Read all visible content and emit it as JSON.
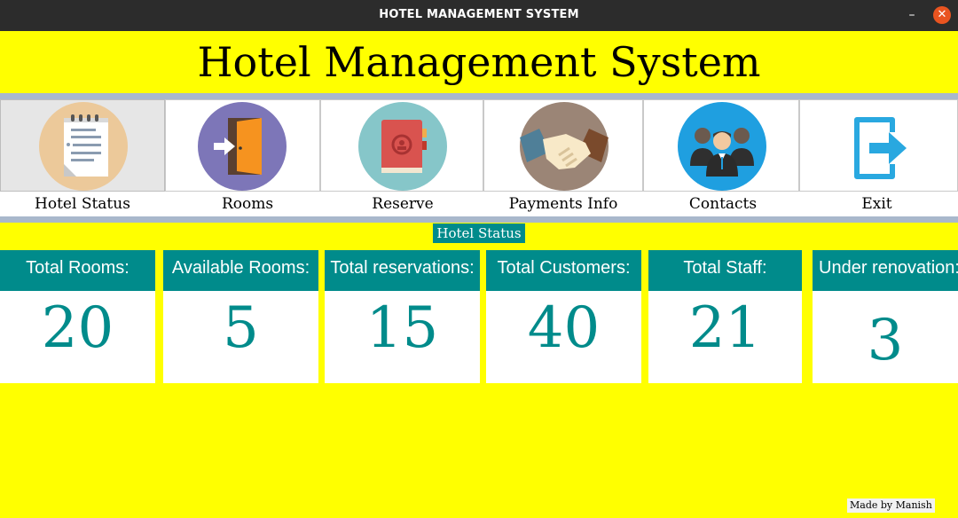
{
  "window": {
    "title": "HOTEL MANAGEMENT SYSTEM",
    "minimize_glyph": "–",
    "close_glyph": "✕"
  },
  "heading": "Hotel Management System",
  "nav": [
    {
      "label": "Hotel Status",
      "icon": "notepad-icon",
      "active": true
    },
    {
      "label": "Rooms",
      "icon": "door-icon",
      "active": false
    },
    {
      "label": "Reserve",
      "icon": "booklet-icon",
      "active": false
    },
    {
      "label": "Payments Info",
      "icon": "handshake-icon",
      "active": false
    },
    {
      "label": "Contacts",
      "icon": "people-icon",
      "active": false
    },
    {
      "label": "Exit",
      "icon": "exit-icon",
      "active": false
    }
  ],
  "section_label": "Hotel Status",
  "stats": [
    {
      "label": "Total Rooms:",
      "value": "20"
    },
    {
      "label": "Available Rooms:",
      "value": "5"
    },
    {
      "label": "Total reservations:",
      "value": "15"
    },
    {
      "label": "Total Customers:",
      "value": "40"
    },
    {
      "label": "Total Staff:",
      "value": "21"
    },
    {
      "label": "Under renovation:",
      "value": "3"
    }
  ],
  "credit": "Made by Manish",
  "colors": {
    "background": "#ffff00",
    "teal": "#008b8b",
    "separator": "#a9b8cc",
    "titlebar": "#2c2c2c",
    "close": "#e95420"
  }
}
